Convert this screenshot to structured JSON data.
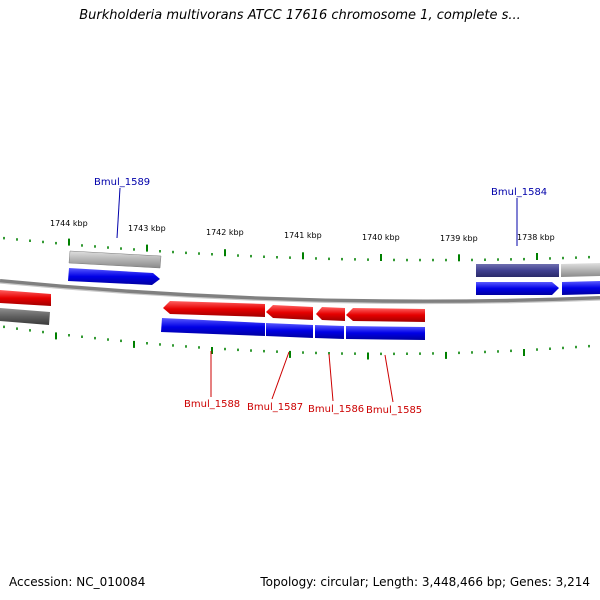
{
  "title": "Burkholderia multivorans ATCC 17616 chromosome 1, complete s...",
  "footer": {
    "accession": "Accession: NC_010084",
    "summary": "Topology: circular; Length: 3,448,466 bp; Genes: 3,214"
  },
  "colors": {
    "forward_cds": "#e60000",
    "reverse_cds": "#0000e6",
    "gene_grey": "#a8a8a8",
    "gene_dark": "#505050",
    "gene_purple": "#404090",
    "tick": "#008000",
    "label_blue": "#0000aa",
    "label_red": "#cc0000",
    "backbone": "#808080"
  },
  "scale": {
    "unit": "kbp",
    "tick_labels": [
      {
        "pos": 1744,
        "text": "1744 kbp"
      },
      {
        "pos": 1743,
        "text": "1743 kbp"
      },
      {
        "pos": 1742,
        "text": "1742 kbp"
      },
      {
        "pos": 1741,
        "text": "1741 kbp"
      },
      {
        "pos": 1740,
        "text": "1740 kbp"
      },
      {
        "pos": 1739,
        "text": "1739 kbp"
      },
      {
        "pos": 1738,
        "text": "1738 kbp"
      }
    ]
  },
  "gene_labels": {
    "g1589": "Bmul_1589",
    "g1584": "Bmul_1584",
    "g1588": "Bmul_1588",
    "g1587": "Bmul_1587",
    "g1586": "Bmul_1586",
    "g1585": "Bmul_1585"
  }
}
